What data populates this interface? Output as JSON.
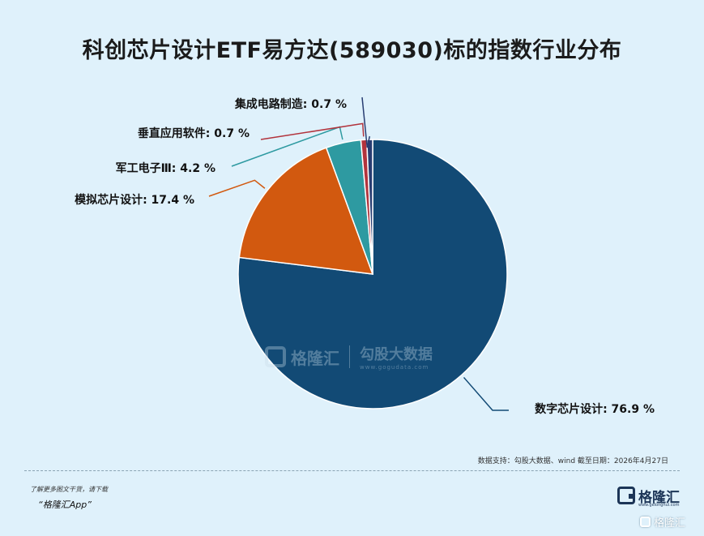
{
  "title": "科创芯片设计ETF易方达(589030)标的指数行业分布",
  "source": "数据支持：勾股大数据、wind 截至日期：2026年4月27日",
  "promo": {
    "line1": "了解更多图文干货，请下载",
    "line2": "“格隆汇App”"
  },
  "logo": {
    "text": "格隆汇",
    "sub": "www.gelonghui.com"
  },
  "watermark": {
    "brand": "格隆汇",
    "partner": "勾股大数据",
    "partner_url": "www.gogudata.com",
    "bottom": "格隆汇"
  },
  "icons": [
    "gelonghui-logo-icon"
  ],
  "chart_data": {
    "type": "pie",
    "title": "科创芯片设计ETF易方达(589030)标的指数行业分布",
    "unit": "%",
    "slices": [
      {
        "label": "数字芯片设计",
        "value": 76.9,
        "display": "数字芯片设计: 76.9 %",
        "color": "#124a75"
      },
      {
        "label": "模拟芯片设计",
        "value": 17.4,
        "display": "模拟芯片设计: 17.4 %",
        "color": "#d2590f"
      },
      {
        "label": "军工电子Ⅲ",
        "value": 4.2,
        "display": "军工电子Ⅲ: 4.2 %",
        "color": "#2e9aa1"
      },
      {
        "label": "垂直应用软件",
        "value": 0.7,
        "display": "垂直应用软件: 0.7 %",
        "color": "#b2343d"
      },
      {
        "label": "集成电路制造",
        "value": 0.7,
        "display": "集成电路制造: 0.7 %",
        "color": "#283d72"
      }
    ],
    "start_angle_deg": 0,
    "direction": "clockwise",
    "legend": "none"
  }
}
